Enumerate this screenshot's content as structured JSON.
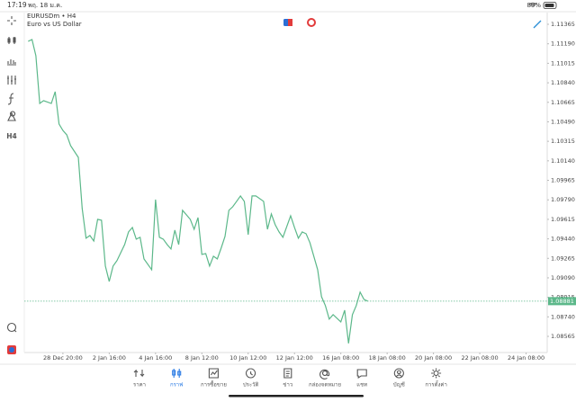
{
  "status_bar": {
    "time": "17:19",
    "date": "พฤ. 18 ม.ค.",
    "battery": "89%"
  },
  "toolbar": {
    "timeframe": "H4"
  },
  "chart_data": {
    "type": "line",
    "title": "EURUSDm • H4",
    "subtitle": "Euro vs US Dollar",
    "color": "#5cb88a",
    "x": [
      1,
      2,
      3,
      4,
      5,
      7,
      8,
      9,
      10,
      11,
      12,
      14,
      15,
      16,
      17,
      18,
      19,
      20,
      21,
      22,
      23,
      24,
      26,
      27,
      28,
      29,
      30,
      31,
      33,
      34,
      35,
      36,
      37,
      38,
      39,
      40,
      41,
      43,
      44,
      45,
      46,
      47,
      48,
      49,
      50,
      51,
      52,
      53,
      54,
      55,
      56,
      57,
      58,
      59,
      60,
      62,
      63,
      64,
      65,
      66,
      67,
      69,
      70,
      71,
      72,
      73,
      74,
      76,
      77,
      78,
      79,
      80,
      82,
      83,
      84,
      85,
      86,
      87,
      88,
      89
    ],
    "values": [
      1.11212,
      1.11228,
      1.11083,
      1.10655,
      1.1068,
      1.10655,
      1.1076,
      1.1047,
      1.10413,
      1.10373,
      1.10276,
      1.10171,
      1.09712,
      1.09446,
      1.0947,
      1.09421,
      1.09615,
      1.09607,
      1.09196,
      1.09058,
      1.09196,
      1.09244,
      1.09389,
      1.09502,
      1.09542,
      1.09437,
      1.09454,
      1.0926,
      1.09163,
      1.09792,
      1.09454,
      1.09437,
      1.09389,
      1.09349,
      1.09518,
      1.09389,
      1.09696,
      1.09615,
      1.09526,
      1.09631,
      1.093,
      1.09308,
      1.09196,
      1.09284,
      1.0926,
      1.09357,
      1.09462,
      1.09696,
      1.09728,
      1.09776,
      1.09825,
      1.09776,
      1.09478,
      1.09825,
      1.09825,
      1.09776,
      1.09526,
      1.09663,
      1.09567,
      1.09502,
      1.09454,
      1.09647,
      1.09542,
      1.09446,
      1.09502,
      1.09486,
      1.09405,
      1.09163,
      1.08921,
      1.08841,
      1.0872,
      1.0876,
      1.08695,
      1.088,
      1.08502,
      1.0876,
      1.08841,
      1.08962,
      1.08897,
      1.08881
    ],
    "xlim": [
      0,
      135
    ],
    "xticks": [
      {
        "value": 10,
        "label": "28 Dec 20:00"
      },
      {
        "value": 22,
        "label": "2 Jan 16:00"
      },
      {
        "value": 34,
        "label": "4 Jan 16:00"
      },
      {
        "value": 46,
        "label": "8 Jan 12:00"
      },
      {
        "value": 58,
        "label": "10 Jan 12:00"
      },
      {
        "value": 70,
        "label": "12 Jan 12:00"
      },
      {
        "value": 82,
        "label": "16 Jan 08:00"
      },
      {
        "value": 94,
        "label": "18 Jan 08:00"
      },
      {
        "value": 106,
        "label": "20 Jan 08:00"
      },
      {
        "value": 118,
        "label": "22 Jan 08:00"
      },
      {
        "value": 130,
        "label": "24 Jan 08:00"
      }
    ],
    "ylim": [
      1.0842,
      1.1147
    ],
    "yticks": [
      {
        "value": 1.11365,
        "label": "1.11365"
      },
      {
        "value": 1.1119,
        "label": "1.11190"
      },
      {
        "value": 1.11015,
        "label": "1.11015"
      },
      {
        "value": 1.1084,
        "label": "1.10840"
      },
      {
        "value": 1.10665,
        "label": "1.10665"
      },
      {
        "value": 1.1049,
        "label": "1.10490"
      },
      {
        "value": 1.10315,
        "label": "1.10315"
      },
      {
        "value": 1.1014,
        "label": "1.10140"
      },
      {
        "value": 1.09965,
        "label": "1.09965"
      },
      {
        "value": 1.0979,
        "label": "1.09790"
      },
      {
        "value": 1.09615,
        "label": "1.09615"
      },
      {
        "value": 1.0944,
        "label": "1.09440"
      },
      {
        "value": 1.09265,
        "label": "1.09265"
      },
      {
        "value": 1.0909,
        "label": "1.09090"
      },
      {
        "value": 1.08915,
        "label": "1.08915"
      },
      {
        "value": 1.0874,
        "label": "1.08740"
      },
      {
        "value": 1.08565,
        "label": "1.08565"
      }
    ],
    "current_price": {
      "value": 1.08881,
      "label": "1.08881"
    }
  },
  "nav": {
    "active": 1,
    "items": [
      "ราคา",
      "กราฟ",
      "การซื้อขาย",
      "ประวัติ",
      "ข่าว",
      "กล่องจดหมาย",
      "แชท",
      "บัญชี",
      "การตั้งค่า"
    ]
  }
}
